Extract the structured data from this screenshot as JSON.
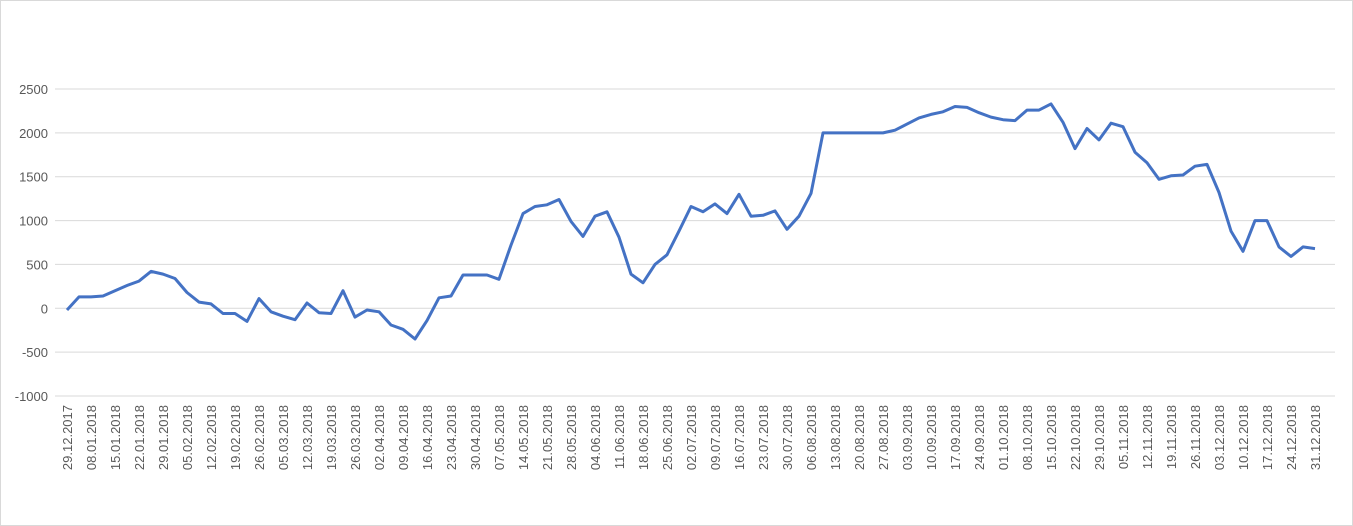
{
  "chart_data": {
    "type": "line",
    "color": "#4472c4",
    "grid": true,
    "ylim": [
      -1000,
      2500
    ],
    "yticks": [
      -1000,
      -500,
      0,
      500,
      1000,
      1500,
      2000,
      2500
    ],
    "categories": [
      "29.12.2017",
      null,
      "08.01.2018",
      null,
      "15.01.2018",
      null,
      "22.01.2018",
      null,
      "29.01.2018",
      null,
      "05.02.2018",
      null,
      "12.02.2018",
      null,
      "19.02.2018",
      null,
      "26.02.2018",
      null,
      "05.03.2018",
      null,
      "12.03.2018",
      null,
      "19.03.2018",
      null,
      "26.03.2018",
      null,
      "02.04.2018",
      null,
      "09.04.2018",
      null,
      "16.04.2018",
      null,
      "23.04.2018",
      null,
      "30.04.2018",
      null,
      "07.05.2018",
      null,
      "14.05.2018",
      null,
      "21.05.2018",
      null,
      "28.05.2018",
      null,
      "04.06.2018",
      null,
      "11.06.2018",
      null,
      "18.06.2018",
      null,
      "25.06.2018",
      null,
      "02.07.2018",
      null,
      "09.07.2018",
      null,
      "16.07.2018",
      null,
      "23.07.2018",
      null,
      "30.07.2018",
      null,
      "06.08.2018",
      null,
      "13.08.2018",
      null,
      "20.08.2018",
      null,
      "27.08.2018",
      null,
      "03.09.2018",
      null,
      "10.09.2018",
      null,
      "17.09.2018",
      null,
      "24.09.2018",
      null,
      "01.10.2018",
      null,
      "08.10.2018",
      null,
      "15.10.2018",
      null,
      "22.10.2018",
      null,
      "29.10.2018",
      null,
      "05.11.2018",
      null,
      "12.11.2018",
      null,
      "19.11.2018",
      null,
      "26.11.2018",
      null,
      "03.12.2018",
      null,
      "10.12.2018",
      null,
      "17.12.2018",
      null,
      "24.12.2018",
      null,
      "31.12.2018"
    ],
    "values": [
      -20,
      130,
      130,
      140,
      200,
      260,
      310,
      420,
      390,
      340,
      180,
      70,
      50,
      -60,
      -60,
      -150,
      110,
      -40,
      -90,
      -130,
      60,
      -50,
      -60,
      200,
      -100,
      -20,
      -40,
      -190,
      -240,
      -350,
      -140,
      120,
      140,
      380,
      380,
      380,
      330,
      720,
      1080,
      1160,
      1180,
      1240,
      990,
      820,
      1050,
      1100,
      810,
      390,
      290,
      500,
      610,
      880,
      1160,
      1100,
      1190,
      1080,
      1300,
      1050,
      1060,
      1110,
      900,
      1050,
      1310,
      2000,
      2000,
      2000,
      2000,
      2000,
      2000,
      2030,
      2100,
      2170,
      2210,
      2240,
      2300,
      2290,
      2230,
      2180,
      2150,
      2140,
      2260,
      2260,
      2330,
      2120,
      1820,
      2050,
      1920,
      2110,
      2070,
      1780,
      1660,
      1470,
      1510,
      1520,
      1620,
      1640,
      1320,
      880,
      650,
      1000,
      1000,
      700,
      590,
      700,
      680
    ]
  }
}
